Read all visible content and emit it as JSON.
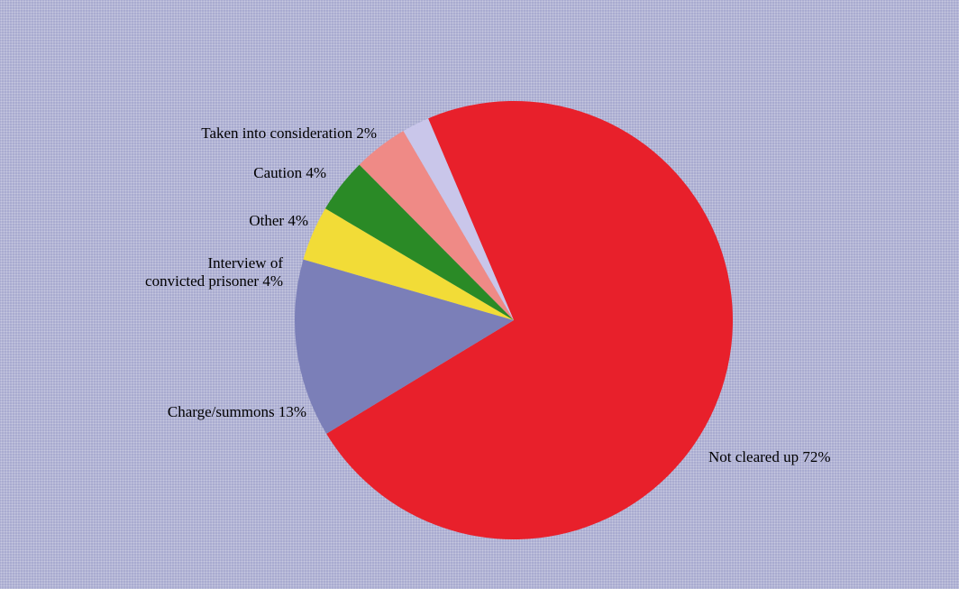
{
  "chart_data": {
    "type": "pie",
    "title": "",
    "start_angle_deg": -23,
    "direction": "clockwise",
    "slices": [
      {
        "label": "Not cleared up 72%",
        "label_lines": [
          "Not cleared up 72%"
        ],
        "value": 72,
        "color": "#e8202b",
        "label_side": "right"
      },
      {
        "label": "Charge/summons 13%",
        "label_lines": [
          "Charge/summons 13%"
        ],
        "value": 13,
        "color": "#7b7fb8",
        "label_side": "left"
      },
      {
        "label": "Interview of convicted prisoner 4%",
        "label_lines": [
          "Interview of",
          "convicted prisoner 4%"
        ],
        "value": 4,
        "color": "#f2dc37",
        "label_side": "left"
      },
      {
        "label": "Other 4%",
        "label_lines": [
          "Other 4%"
        ],
        "value": 4,
        "color": "#2a8a26",
        "label_side": "left"
      },
      {
        "label": "Caution 4%",
        "label_lines": [
          "Caution 4%"
        ],
        "value": 4,
        "color": "#ef8a86",
        "label_side": "left"
      },
      {
        "label": "Taken into consideration 2%",
        "label_lines": [
          "Taken into consideration 2%"
        ],
        "value": 2,
        "color": "#c9c6ea",
        "label_side": "left"
      }
    ]
  }
}
